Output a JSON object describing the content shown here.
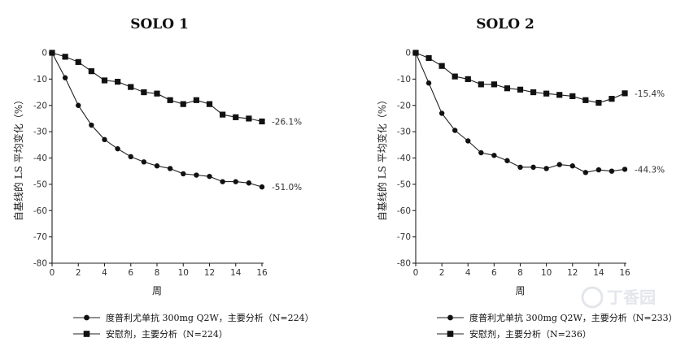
{
  "chart_data": [
    {
      "type": "line",
      "title": "SOLO 1",
      "xlabel": "周",
      "ylabel": "自基线的 LS 平均变化（%）",
      "xlim": [
        0,
        16
      ],
      "ylim": [
        -80,
        0
      ],
      "xticks": [
        0,
        2,
        4,
        6,
        8,
        10,
        12,
        14,
        16
      ],
      "yticks": [
        0,
        -10,
        -20,
        -30,
        -40,
        -50,
        -60,
        -70,
        -80
      ],
      "series": [
        {
          "name": "度普利尤单抗 300mg Q2W，主要分析（N=224）",
          "marker": "circle",
          "end_label": "-51.0%",
          "x": [
            0,
            1,
            2,
            3,
            4,
            5,
            6,
            7,
            8,
            9,
            10,
            11,
            12,
            13,
            14,
            15,
            16
          ],
          "values": [
            0,
            -9.5,
            -20,
            -27.5,
            -33,
            -36.5,
            -39.5,
            -41.5,
            -43,
            -44,
            -46,
            -46.5,
            -47,
            -49,
            -49,
            -49.5,
            -51
          ]
        },
        {
          "name": "安慰剂，主要分析（N=224）",
          "marker": "square",
          "end_label": "-26.1%",
          "x": [
            0,
            1,
            2,
            3,
            4,
            5,
            6,
            7,
            8,
            9,
            10,
            11,
            12,
            13,
            14,
            15,
            16
          ],
          "values": [
            0,
            -1.5,
            -3.5,
            -7,
            -10.5,
            -11,
            -13,
            -15,
            -15.5,
            -18,
            -19.5,
            -18,
            -19.5,
            -23.5,
            -24.5,
            -25,
            -26.1
          ]
        }
      ],
      "grid": false,
      "legend": "bottom"
    },
    {
      "type": "line",
      "title": "SOLO 2",
      "xlabel": "周",
      "ylabel": "自基线的 LS 平均变化（%）",
      "xlim": [
        0,
        16
      ],
      "ylim": [
        -80,
        0
      ],
      "xticks": [
        0,
        2,
        4,
        6,
        8,
        10,
        12,
        14,
        16
      ],
      "yticks": [
        0,
        -10,
        -20,
        -30,
        -40,
        -50,
        -60,
        -70,
        -80
      ],
      "series": [
        {
          "name": "度普利尤单抗 300mg Q2W，主要分析（N=233）",
          "marker": "circle",
          "end_label": "-44.3%",
          "x": [
            0,
            1,
            2,
            3,
            4,
            5,
            6,
            7,
            8,
            9,
            10,
            11,
            12,
            13,
            14,
            15,
            16
          ],
          "values": [
            0,
            -11.5,
            -23,
            -29.5,
            -33.5,
            -38,
            -39,
            -41,
            -43.5,
            -43.5,
            -44,
            -42.5,
            -43,
            -45.5,
            -44.5,
            -45,
            -44.3
          ]
        },
        {
          "name": "安慰剂，主要分析（N=236）",
          "marker": "square",
          "end_label": "-15.4%",
          "x": [
            0,
            1,
            2,
            3,
            4,
            5,
            6,
            7,
            8,
            9,
            10,
            11,
            12,
            13,
            14,
            15,
            16
          ],
          "values": [
            0,
            -2,
            -5,
            -9,
            -10,
            -12,
            -12,
            -13.5,
            -14,
            -15,
            -15.5,
            -16,
            -16.5,
            -18,
            -19,
            -17.5,
            -15.4
          ]
        }
      ],
      "grid": false,
      "legend": "bottom"
    }
  ],
  "watermark": {
    "text": "丁香园",
    "icon": "watermark-logo-icon"
  },
  "colors": {
    "line": "#222222",
    "marker": "#111111",
    "watermark": "#e3e6ea"
  }
}
